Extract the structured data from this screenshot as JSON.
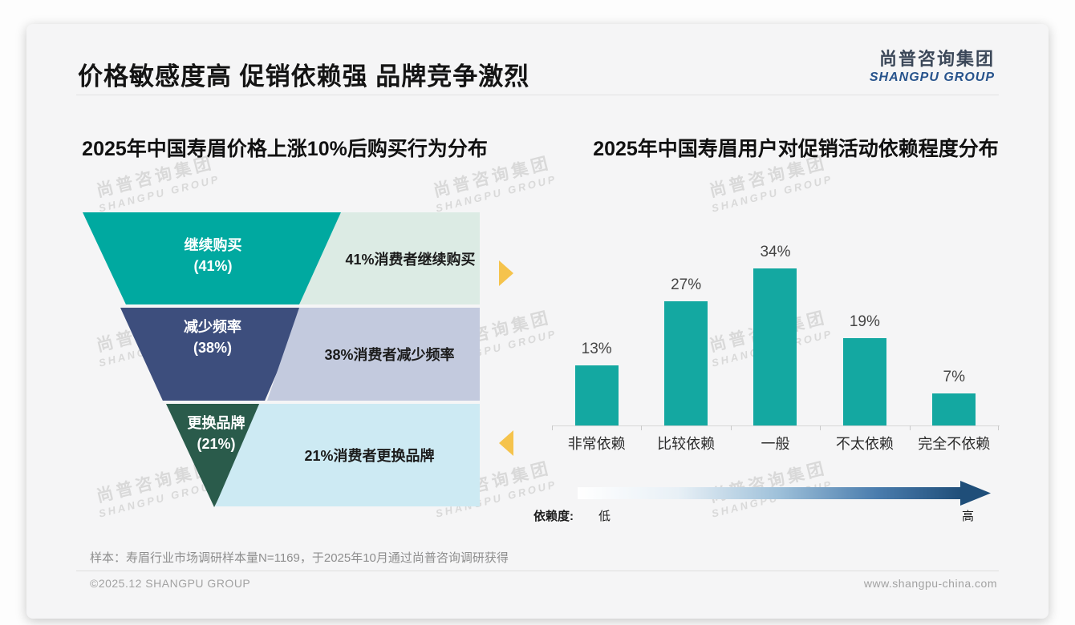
{
  "header": {
    "title": "价格敏感度高 促销依赖强 品牌竞争激烈",
    "logo_cn": "尚普咨询集团",
    "logo_en": "SHANGPU GROUP"
  },
  "watermark": {
    "line1": "尚普咨询集团",
    "line2": "SHANGPU GROUP"
  },
  "funnel": {
    "title": "2025年中国寿眉价格上涨10%后购买行为分布",
    "segments": [
      {
        "label": "继续购买",
        "pct_label": "(41%)",
        "value": 41,
        "side_note": "41%消费者继续购买",
        "color": "#00a9a0",
        "panel_color": "#dcebe4"
      },
      {
        "label": "减少频率",
        "pct_label": "(38%)",
        "value": 38,
        "side_note": "38%消费者减少频率",
        "color": "#3d4e7d",
        "panel_color": "#c3cade"
      },
      {
        "label": "更换品牌",
        "pct_label": "(21%)",
        "value": 21,
        "side_note": "21%消费者更换品牌",
        "color": "#2a5b4b",
        "panel_color": "#cdeaf3"
      }
    ]
  },
  "bars": {
    "title": "2025年中国寿眉用户对促销活动依赖程度分布",
    "items": [
      {
        "label": "非常依赖",
        "value": 13,
        "display": "13%"
      },
      {
        "label": "比较依赖",
        "value": 27,
        "display": "27%"
      },
      {
        "label": "一般",
        "value": 34,
        "display": "34%"
      },
      {
        "label": "不太依赖",
        "value": 19,
        "display": "19%"
      },
      {
        "label": "完全不依赖",
        "value": 7,
        "display": "7%"
      }
    ],
    "axis_label": "依赖度:",
    "axis_low": "低",
    "axis_high": "高"
  },
  "footer": {
    "note": "样本：寿眉行业市场调研样本量N=1169，于2025年10月通过尚普咨询调研获得",
    "copyright": "©2025.12 SHANGPU GROUP",
    "website": "www.shangpu-china.com"
  },
  "colors": {
    "bar": "#14a8a1",
    "marker_yellow": "#f5c34c",
    "logo_blue": "#27538c",
    "gradient_end": "#1f4e79",
    "funnel_teal": "#00a9a0",
    "funnel_navy": "#3d4e7d",
    "funnel_green": "#2a5b4b"
  },
  "chart_data": [
    {
      "type": "bar",
      "variant": "funnel",
      "title": "2025年中国寿眉价格上涨10%后购买行为分布",
      "categories": [
        "继续购买",
        "减少频率",
        "更换品牌"
      ],
      "values": [
        41,
        38,
        21
      ],
      "unit": "%",
      "annotations": [
        "41%消费者继续购买",
        "38%消费者减少频率",
        "21%消费者更换品牌"
      ],
      "colors": [
        "#00a9a0",
        "#3d4e7d",
        "#2a5b4b"
      ],
      "legend_position": "none",
      "grid": false
    },
    {
      "type": "bar",
      "title": "2025年中国寿眉用户对促销活动依赖程度分布",
      "categories": [
        "非常依赖",
        "比较依赖",
        "一般",
        "不太依赖",
        "完全不依赖"
      ],
      "values": [
        13,
        27,
        34,
        19,
        7
      ],
      "unit": "%",
      "xlabel": "",
      "ylabel": "",
      "ylim": [
        0,
        40
      ],
      "grid": false,
      "legend_position": "none",
      "bar_color": "#14a8a1",
      "scale_annotation": {
        "label": "依赖度:",
        "low": "低",
        "high": "高"
      }
    }
  ]
}
